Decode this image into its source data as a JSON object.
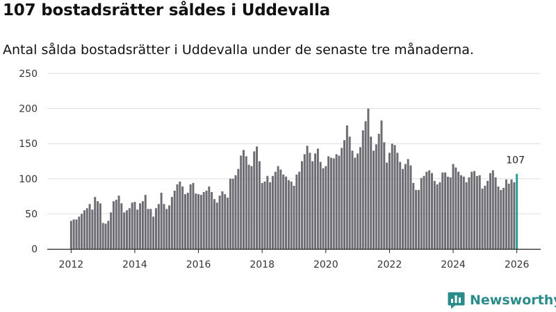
{
  "header": {
    "title": "107 bostadsrätter såldes i Uddevalla",
    "subtitle": "Antal sålda bostadsrätter i Uddevalla under de senaste tre månaderna."
  },
  "brand": {
    "name": "Newsworthy",
    "icon": "newsworthy-logo-icon"
  },
  "colors": {
    "bar": "#6d6c72",
    "highlight": "#2a9d94",
    "brand": "#2a8b8b",
    "grid": "#dddddd"
  },
  "chart_data": {
    "type": "bar",
    "title": "107 bostadsrätter såldes i Uddevalla",
    "subtitle": "Antal sålda bostadsrätter i Uddevalla under de senaste tre månaderna.",
    "xlabel": "",
    "ylabel": "",
    "x_start": "2012-01",
    "x_interval": "month",
    "x_range": [
      2011.25,
      2026.75
    ],
    "ylim": [
      0,
      250
    ],
    "yticks": [
      0,
      50,
      100,
      150,
      200,
      250
    ],
    "xticks": [
      2012,
      2014,
      2016,
      2018,
      2020,
      2022,
      2024,
      2026
    ],
    "grid": true,
    "highlight_label": "107",
    "values": [
      40,
      42,
      42,
      46,
      50,
      55,
      58,
      64,
      56,
      74,
      68,
      65,
      37,
      36,
      40,
      52,
      68,
      70,
      76,
      65,
      52,
      55,
      58,
      66,
      67,
      56,
      65,
      68,
      77,
      57,
      57,
      46,
      58,
      64,
      80,
      64,
      57,
      62,
      74,
      83,
      92,
      96,
      89,
      78,
      80,
      92,
      94,
      79,
      78,
      77,
      81,
      83,
      89,
      81,
      71,
      66,
      76,
      82,
      78,
      73,
      100,
      100,
      105,
      114,
      133,
      141,
      132,
      120,
      118,
      139,
      146,
      125,
      94,
      96,
      104,
      95,
      104,
      110,
      118,
      113,
      106,
      103,
      98,
      96,
      90,
      106,
      110,
      125,
      135,
      147,
      137,
      125,
      136,
      143,
      124,
      115,
      118,
      132,
      130,
      129,
      135,
      133,
      144,
      155,
      176,
      160,
      140,
      130,
      136,
      145,
      169,
      182,
      200,
      160,
      140,
      149,
      164,
      183,
      152,
      123,
      137,
      150,
      148,
      137,
      124,
      114,
      121,
      128,
      119,
      94,
      84,
      84,
      101,
      104,
      110,
      112,
      108,
      97,
      92,
      95,
      109,
      109,
      103,
      102,
      121,
      116,
      110,
      105,
      103,
      95,
      102,
      110,
      111,
      104,
      105,
      86,
      90,
      97,
      108,
      112,
      102,
      89,
      84,
      87,
      99,
      93,
      99,
      95,
      107
    ],
    "series": [
      {
        "name": "Antal sålda bostadsrätter",
        "color": "#6d6c72"
      }
    ]
  }
}
